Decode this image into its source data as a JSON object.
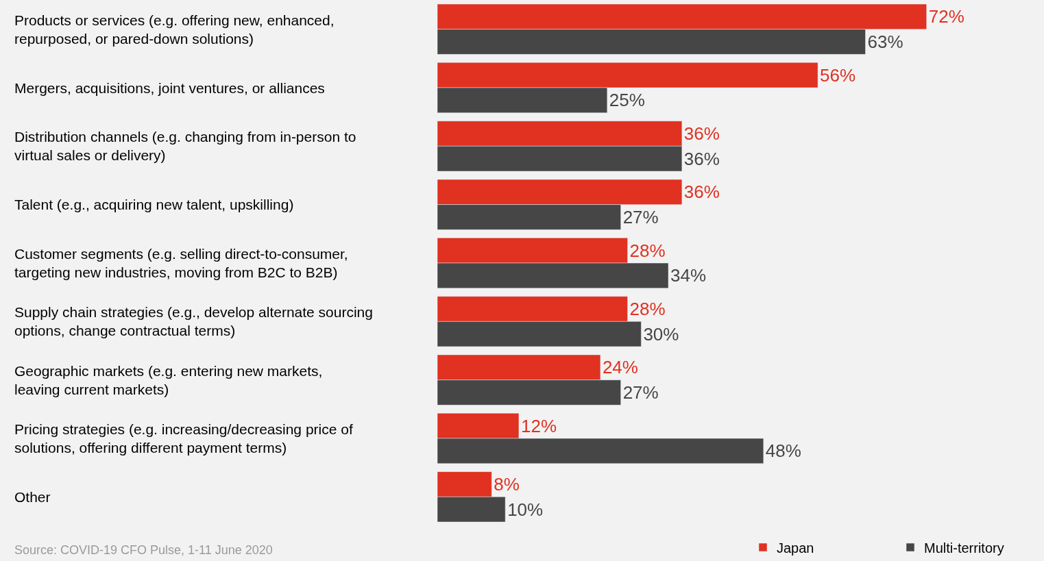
{
  "chart_data": {
    "type": "bar",
    "orientation": "horizontal",
    "legend": "bottom right",
    "grid": false,
    "categories": [
      "Products or services (e.g. offering new, enhanced,\nrepurposed, or pared-down solutions)",
      "Mergers, acquisitions, joint ventures, or alliances",
      "Distribution channels (e.g. changing from in-person to\nvirtual sales or delivery)",
      "Talent (e.g., acquiring new talent, upskilling)",
      "Customer segments (e.g. selling direct-to-consumer,\ntargeting new industries, moving from B2C to B2B)",
      "Supply chain strategies (e.g., develop alternate sourcing\noptions, change contractual terms)",
      "Geographic markets (e.g. entering new markets,\nleaving current markets)",
      "Pricing strategies (e.g. increasing/decreasing price of\nsolutions, offering different payment terms)",
      "Other"
    ],
    "series": [
      {
        "name": "Japan",
        "color": "#e03121",
        "values": [
          72,
          56,
          36,
          36,
          28,
          28,
          24,
          12,
          8
        ],
        "value_labels": [
          "72%",
          "56%",
          "36%",
          "36%",
          "28%",
          "28%",
          "24%",
          "12%",
          "8%"
        ]
      },
      {
        "name": "Multi-territory",
        "color": "#464646",
        "values": [
          63,
          25,
          36,
          27,
          34,
          30,
          27,
          48,
          10
        ],
        "value_labels": [
          "63%",
          "25%",
          "36%",
          "27%",
          "34%",
          "30%",
          "27%",
          "48%",
          "10%"
        ]
      }
    ],
    "annotations": [
      "Source: COVID-19 CFO Pulse, 1-11 June 2020"
    ]
  }
}
